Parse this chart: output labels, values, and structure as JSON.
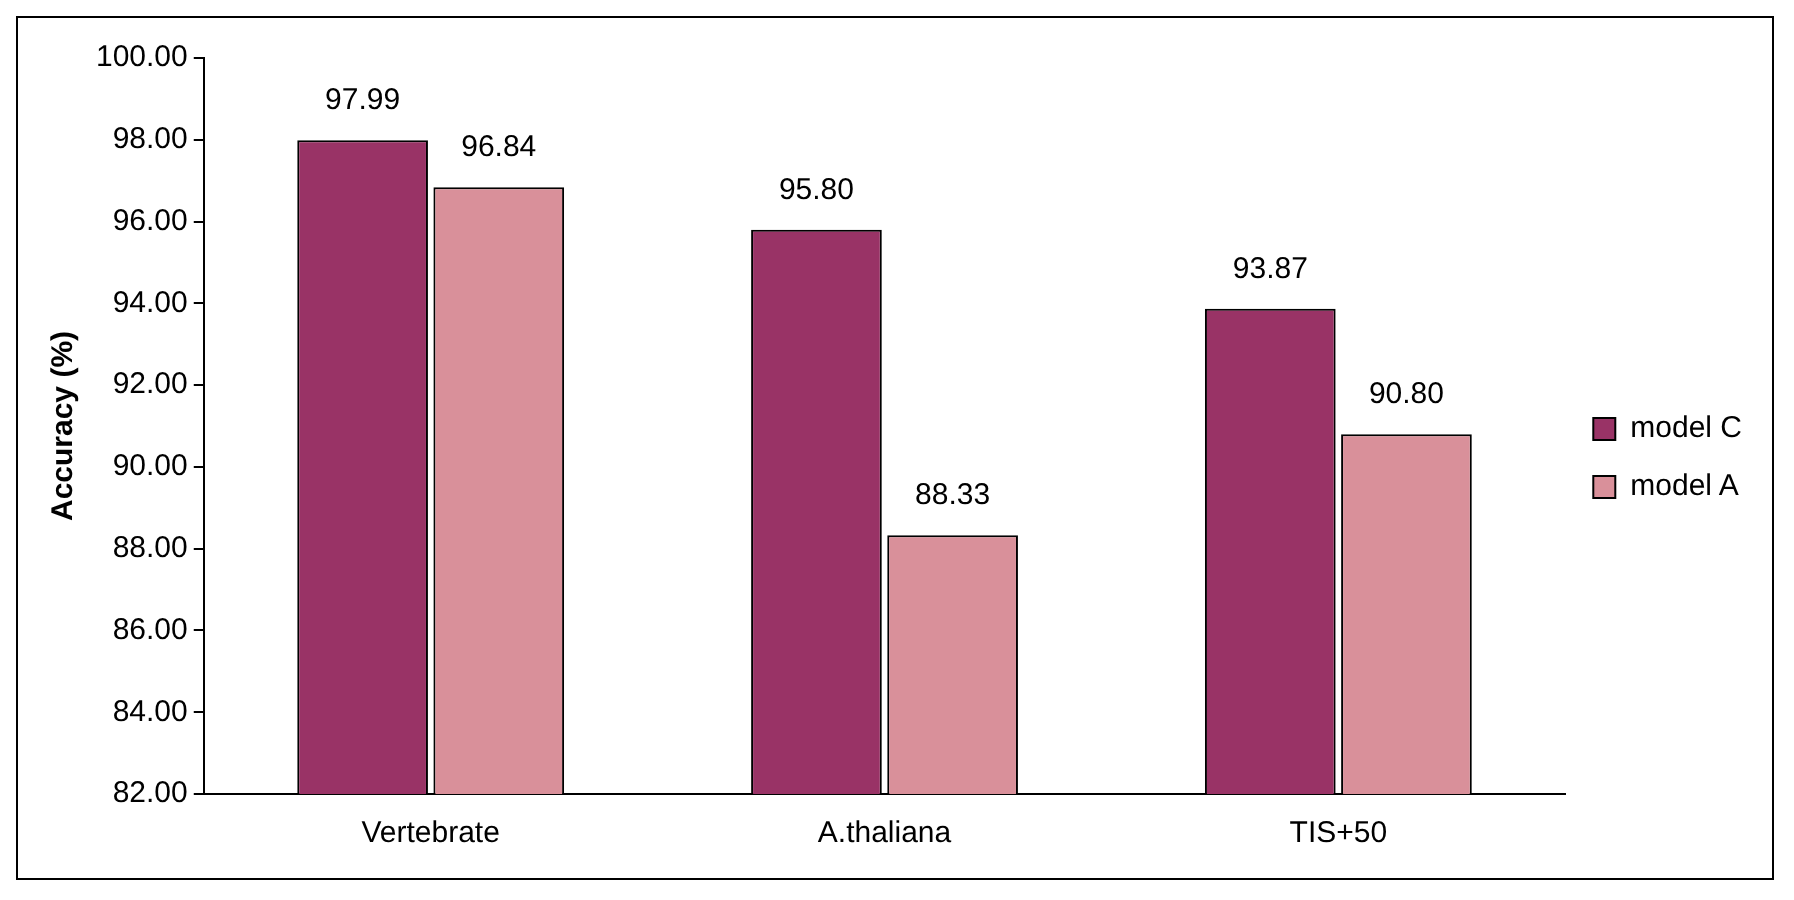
{
  "chart_data": {
    "type": "bar",
    "ylabel": "Accuracy (%)",
    "categories": [
      "Vertebrate",
      "A.thaliana",
      "TIS+50"
    ],
    "series": [
      {
        "name": "model C",
        "color": "#993366",
        "values": [
          97.99,
          95.8,
          93.87
        ],
        "value_labels": [
          "97.99",
          "95.80",
          "93.87"
        ]
      },
      {
        "name": "model A",
        "color": "#d9909a",
        "values": [
          96.84,
          88.33,
          90.8
        ],
        "value_labels": [
          "96.84",
          "88.33",
          "90.80"
        ]
      }
    ],
    "ylim": [
      82,
      100
    ],
    "yticks": [
      {
        "value": 82,
        "label": "82.00"
      },
      {
        "value": 84,
        "label": "84.00"
      },
      {
        "value": 86,
        "label": "86.00"
      },
      {
        "value": 88,
        "label": "88.00"
      },
      {
        "value": 90,
        "label": "90.00"
      },
      {
        "value": 92,
        "label": "92.00"
      },
      {
        "value": 94,
        "label": "94.00"
      },
      {
        "value": 96,
        "label": "96.00"
      },
      {
        "value": 98,
        "label": "98.00"
      },
      {
        "value": 100,
        "label": "100.00"
      }
    ],
    "grid": false,
    "legend": "right"
  }
}
